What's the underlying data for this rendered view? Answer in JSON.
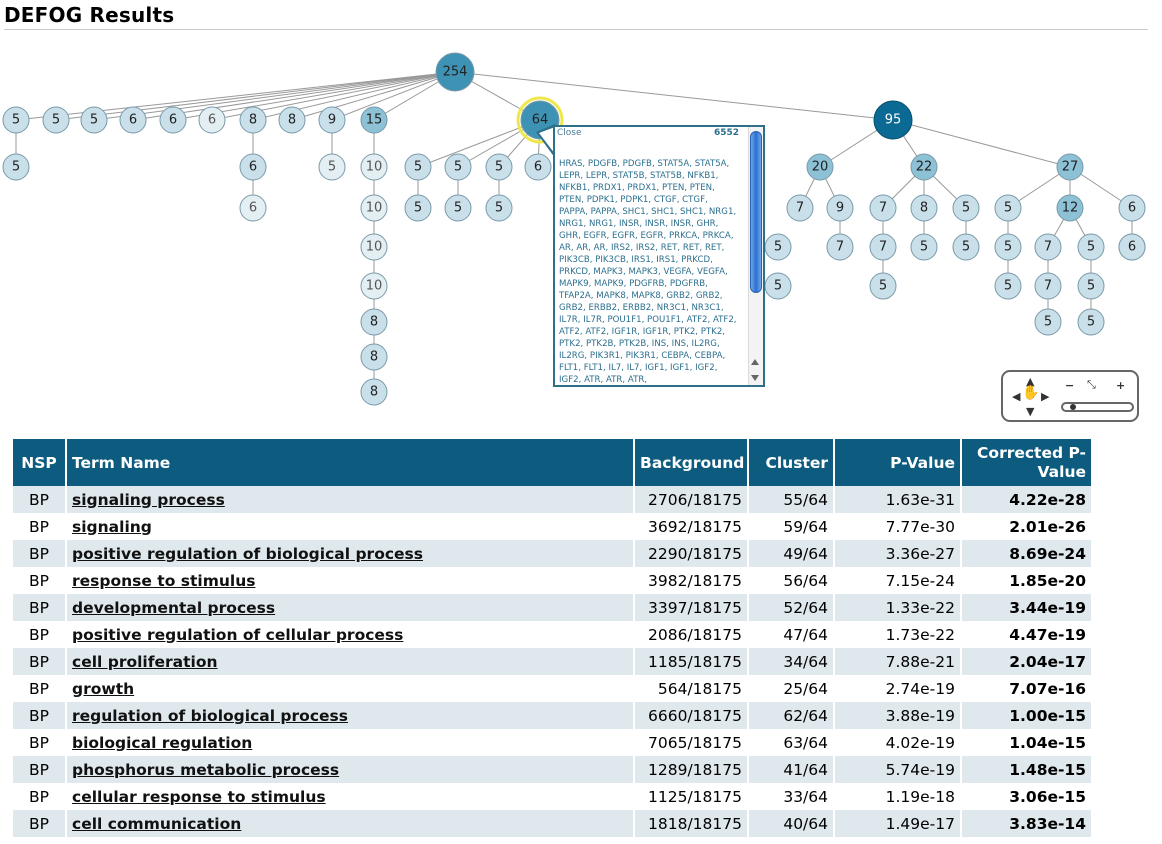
{
  "page": {
    "title": "DEFOG Results"
  },
  "tree": {
    "root": {
      "label": "254",
      "color": "#3e93b4"
    },
    "nodes": [
      {
        "label": "5"
      },
      {
        "label": "5"
      },
      {
        "label": "5"
      },
      {
        "label": "6"
      },
      {
        "label": "6"
      },
      {
        "label": "6"
      },
      {
        "label": "8"
      },
      {
        "label": "8"
      },
      {
        "label": "9"
      },
      {
        "label": "15"
      },
      {
        "label": "64"
      },
      {
        "label": "95"
      },
      {
        "label": "5"
      },
      {
        "label": "6"
      },
      {
        "label": "5"
      },
      {
        "label": "10"
      },
      {
        "label": "5"
      },
      {
        "label": "5"
      },
      {
        "label": "5"
      },
      {
        "label": "6"
      },
      {
        "label": "20"
      },
      {
        "label": "22"
      },
      {
        "label": "27"
      },
      {
        "label": "6"
      },
      {
        "label": "10"
      },
      {
        "label": "5"
      },
      {
        "label": "5"
      },
      {
        "label": "5"
      },
      {
        "label": "7"
      },
      {
        "label": "9"
      },
      {
        "label": "7"
      },
      {
        "label": "8"
      },
      {
        "label": "5"
      },
      {
        "label": "5"
      },
      {
        "label": "12"
      },
      {
        "label": "6"
      },
      {
        "label": "10"
      },
      {
        "label": "5"
      },
      {
        "label": "7"
      },
      {
        "label": "7"
      },
      {
        "label": "5"
      },
      {
        "label": "5"
      },
      {
        "label": "5"
      },
      {
        "label": "5"
      },
      {
        "label": "7"
      },
      {
        "label": "5"
      },
      {
        "label": "6"
      },
      {
        "label": "10"
      },
      {
        "label": "5"
      },
      {
        "label": "5"
      },
      {
        "label": "7"
      },
      {
        "label": "5"
      },
      {
        "label": "8"
      },
      {
        "label": "5"
      },
      {
        "label": "5"
      },
      {
        "label": "5"
      },
      {
        "label": "8"
      },
      {
        "label": "8"
      }
    ]
  },
  "tooltip": {
    "close_label": "Close",
    "count": "6552",
    "genes": "HRAS, PDGFB, PDGFB, STAT5A, STAT5A, LEPR, LEPR, STAT5B, STAT5B, NFKB1, NFKB1, PRDX1, PRDX1, PTEN, PTEN, PTEN, PDPK1, PDPK1, CTGF, CTGF, PAPPA, PAPPA, SHC1, SHC1, SHC1, NRG1, NRG1, NRG1, INSR, INSR, INSR, GHR, GHR, EGFR, EGFR, EGFR, PRKCA, PRKCA, AR, AR, AR, IRS2, IRS2, RET, RET, RET, PIK3CB, PIK3CB, IRS1, IRS1, PRKCD, PRKCD, MAPK3, MAPK3, VEGFA, VEGFA, MAPK9, MAPK9, PDGFRB, PDGFRB, TFAP2A, MAPK8, MAPK8, GRB2, GRB2, GRB2, ERBB2, ERBB2, NR3C1, NR3C1, IL7R, IL7R, POU1F1, POU1F1, ATF2, ATF2, ATF2, ATF2, IGF1R, IGF1R, PTK2, PTK2, PTK2, PTK2B, PTK2B, INS, INS, IL2RG, IL2RG, PIK3R1, PIK3R1, CEBPA, CEBPA, FLT1, FLT1, IL7, IL7, IGF1, IGF1, IGF2, IGF2, ATR, ATR, ATR,"
  },
  "nav": {
    "up": "▲",
    "down": "▼",
    "left": "◀",
    "right": "▶",
    "pan": "✋",
    "minus": "−",
    "fit": "⤡",
    "plus": "+",
    "zoom_level": 0.05
  },
  "table": {
    "headers": {
      "nsp": "NSP",
      "term": "Term Name",
      "background": "Background",
      "cluster": "Cluster",
      "pvalue": "P-Value",
      "corrected": "Corrected P-Value"
    },
    "rows": [
      {
        "nsp": "BP",
        "term": "signaling process",
        "background": "2706/18175",
        "cluster": "55/64",
        "pvalue": "1.63e-31",
        "corrected": "4.22e-28"
      },
      {
        "nsp": "BP",
        "term": "signaling",
        "background": "3692/18175",
        "cluster": "59/64",
        "pvalue": "7.77e-30",
        "corrected": "2.01e-26"
      },
      {
        "nsp": "BP",
        "term": "positive regulation of biological process",
        "background": "2290/18175",
        "cluster": "49/64",
        "pvalue": "3.36e-27",
        "corrected": "8.69e-24"
      },
      {
        "nsp": "BP",
        "term": "response to stimulus",
        "background": "3982/18175",
        "cluster": "56/64",
        "pvalue": "7.15e-24",
        "corrected": "1.85e-20"
      },
      {
        "nsp": "BP",
        "term": "developmental process",
        "background": "3397/18175",
        "cluster": "52/64",
        "pvalue": "1.33e-22",
        "corrected": "3.44e-19"
      },
      {
        "nsp": "BP",
        "term": "positive regulation of cellular process",
        "background": "2086/18175",
        "cluster": "47/64",
        "pvalue": "1.73e-22",
        "corrected": "4.47e-19"
      },
      {
        "nsp": "BP",
        "term": "cell proliferation",
        "background": "1185/18175",
        "cluster": "34/64",
        "pvalue": "7.88e-21",
        "corrected": "2.04e-17"
      },
      {
        "nsp": "BP",
        "term": "growth",
        "background": "564/18175",
        "cluster": "25/64",
        "pvalue": "2.74e-19",
        "corrected": "7.07e-16"
      },
      {
        "nsp": "BP",
        "term": "regulation of biological process",
        "background": "6660/18175",
        "cluster": "62/64",
        "pvalue": "3.88e-19",
        "corrected": "1.00e-15"
      },
      {
        "nsp": "BP",
        "term": "biological regulation",
        "background": "7065/18175",
        "cluster": "63/64",
        "pvalue": "4.02e-19",
        "corrected": "1.04e-15"
      },
      {
        "nsp": "BP",
        "term": "phosphorus metabolic process",
        "background": "1289/18175",
        "cluster": "41/64",
        "pvalue": "5.74e-19",
        "corrected": "1.48e-15"
      },
      {
        "nsp": "BP",
        "term": "cellular response to stimulus",
        "background": "1125/18175",
        "cluster": "33/64",
        "pvalue": "1.19e-18",
        "corrected": "3.06e-15"
      },
      {
        "nsp": "BP",
        "term": "cell communication",
        "background": "1818/18175",
        "cluster": "40/64",
        "pvalue": "1.49e-17",
        "corrected": "3.83e-14"
      }
    ]
  },
  "colors": {
    "header_bg": "#0d5c80",
    "row_alt": "#dfe8ec",
    "node_light": "#c9e0ea",
    "node_pale": "#e4eff4",
    "node_mid": "#3e93b4",
    "node_selected": "#3e93b4",
    "node_dark": "#0b6a94",
    "node_medium": "#8cc1d6",
    "highlight_ring": "#f0e84a"
  }
}
